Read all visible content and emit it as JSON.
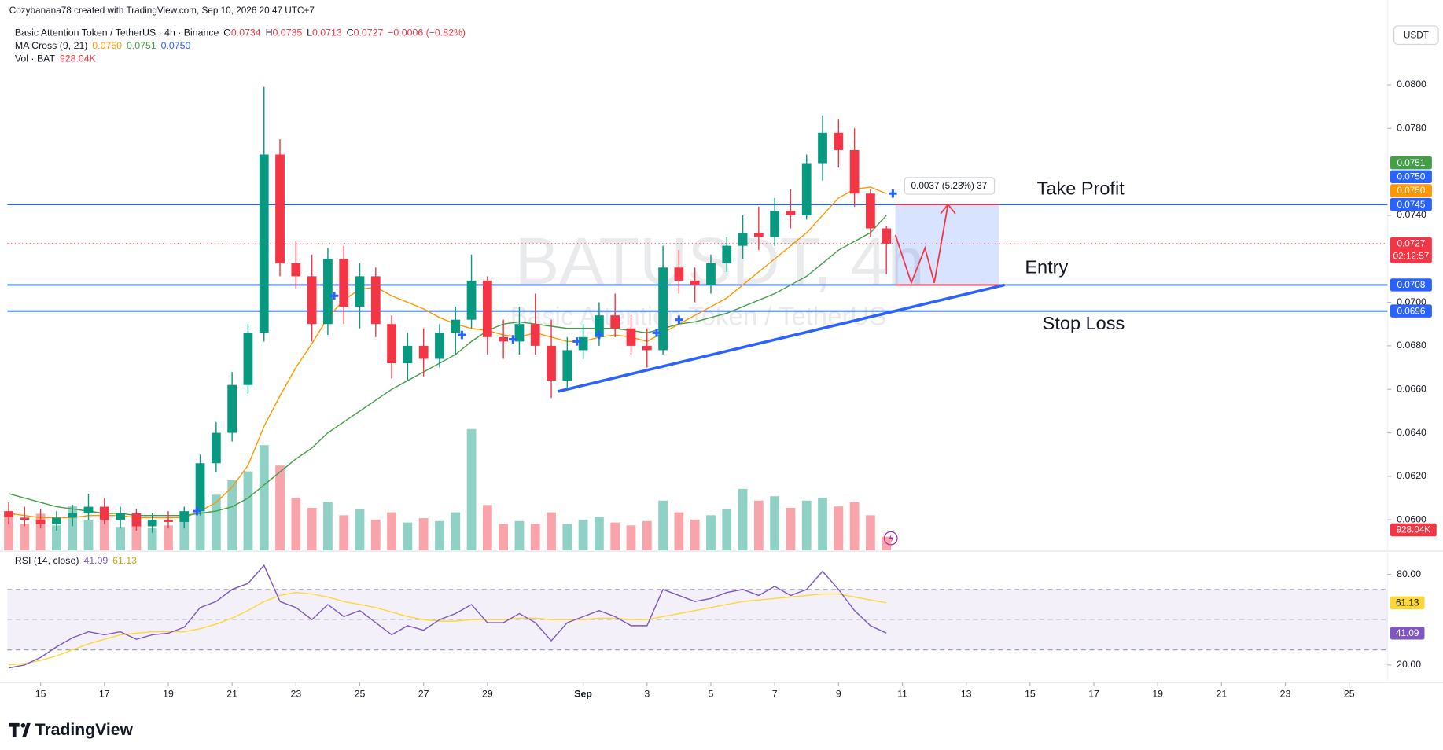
{
  "header": {
    "credit": "Cozybanana78 created with TradingView.com, Sep 10, 2026 20:47 UTC+7",
    "symbol": "Basic Attention Token / TetherUS · 4h · Binance",
    "ohlc": [
      {
        "key": "O",
        "value": "0.0734"
      },
      {
        "key": "H",
        "value": "0.0735"
      },
      {
        "key": "L",
        "value": "0.0713"
      },
      {
        "key": "C",
        "value": "0.0727"
      }
    ],
    "change": "−0.0006 (−0.82%)",
    "ma_legend": {
      "name": "MA Cross (9, 21)",
      "values": [
        "0.0750",
        "0.0751",
        "0.0750"
      ]
    },
    "vol_legend": {
      "name": "Vol · BAT",
      "value": "928.04K"
    },
    "rsi_legend": {
      "name": "RSI (14, close)",
      "values": [
        "41.09",
        "61.13"
      ]
    },
    "currency": "USDT",
    "watermark": "BATUSDT, 4h",
    "watermark_sub": "Basic Attention Token / TetherUS",
    "brand": "TradingView"
  },
  "chart_data": {
    "type": "candlestick",
    "x": [
      14,
      14.5,
      15,
      15.5,
      16,
      16.5,
      17,
      17.5,
      18,
      18.5,
      19,
      19.5,
      20,
      20.5,
      21,
      21.5,
      22,
      22.5,
      23,
      23.5,
      24,
      24.5,
      25,
      25.5,
      26,
      26.5,
      27,
      27.5,
      28,
      28.5,
      29,
      29.5,
      30,
      30.5,
      31,
      31.5,
      32,
      32.5,
      33,
      33.5,
      34,
      34.5,
      35,
      35.5,
      36,
      36.5,
      37,
      37.5,
      38,
      38.5,
      39,
      39.5,
      40,
      40.5,
      41,
      41.5
    ],
    "open": [
      0.0604,
      0.0601,
      0.06,
      0.0598,
      0.0601,
      0.0603,
      0.0606,
      0.06,
      0.0603,
      0.0597,
      0.06,
      0.0599,
      0.0604,
      0.0626,
      0.064,
      0.0662,
      0.0686,
      0.0768,
      0.0718,
      0.0712,
      0.069,
      0.072,
      0.0698,
      0.0712,
      0.069,
      0.0672,
      0.068,
      0.0674,
      0.0686,
      0.0692,
      0.071,
      0.0684,
      0.0682,
      0.069,
      0.068,
      0.0664,
      0.0678,
      0.0684,
      0.0694,
      0.0688,
      0.068,
      0.0678,
      0.0716,
      0.071,
      0.0708,
      0.0718,
      0.0726,
      0.0732,
      0.073,
      0.0742,
      0.074,
      0.0764,
      0.0778,
      0.077,
      0.075,
      0.0734
    ],
    "high": [
      0.0608,
      0.0606,
      0.0605,
      0.0604,
      0.0607,
      0.0612,
      0.061,
      0.0606,
      0.0605,
      0.0603,
      0.0604,
      0.0606,
      0.063,
      0.0645,
      0.0668,
      0.069,
      0.0799,
      0.0775,
      0.0728,
      0.0722,
      0.0725,
      0.0726,
      0.0718,
      0.0716,
      0.0694,
      0.0686,
      0.0688,
      0.069,
      0.0698,
      0.0722,
      0.0712,
      0.0692,
      0.0698,
      0.0704,
      0.0692,
      0.0684,
      0.069,
      0.07,
      0.0704,
      0.0694,
      0.0688,
      0.0726,
      0.0724,
      0.0716,
      0.0722,
      0.073,
      0.074,
      0.0744,
      0.0748,
      0.0752,
      0.0768,
      0.0786,
      0.0784,
      0.078,
      0.0752,
      0.0735
    ],
    "low": [
      0.0598,
      0.0597,
      0.0596,
      0.0595,
      0.0597,
      0.06,
      0.0598,
      0.0596,
      0.0595,
      0.0594,
      0.0596,
      0.0596,
      0.0602,
      0.0622,
      0.0636,
      0.0658,
      0.0682,
      0.0712,
      0.0706,
      0.0682,
      0.0685,
      0.069,
      0.0688,
      0.0684,
      0.0665,
      0.0664,
      0.0666,
      0.067,
      0.0676,
      0.0688,
      0.0676,
      0.0674,
      0.0676,
      0.0676,
      0.0656,
      0.066,
      0.0674,
      0.068,
      0.0684,
      0.0676,
      0.067,
      0.0676,
      0.0704,
      0.07,
      0.0704,
      0.0714,
      0.072,
      0.0724,
      0.0726,
      0.0734,
      0.0738,
      0.0756,
      0.0762,
      0.0744,
      0.073,
      0.0713
    ],
    "close": [
      0.0601,
      0.06,
      0.0598,
      0.0601,
      0.0603,
      0.0606,
      0.06,
      0.0603,
      0.0597,
      0.06,
      0.0599,
      0.0604,
      0.0626,
      0.064,
      0.0662,
      0.0686,
      0.0768,
      0.0718,
      0.0712,
      0.069,
      0.072,
      0.0698,
      0.0712,
      0.069,
      0.0672,
      0.068,
      0.0674,
      0.0686,
      0.0692,
      0.071,
      0.0684,
      0.0682,
      0.069,
      0.068,
      0.0664,
      0.0678,
      0.0684,
      0.0694,
      0.0688,
      0.068,
      0.0678,
      0.0716,
      0.071,
      0.0708,
      0.0718,
      0.0726,
      0.0732,
      0.073,
      0.0742,
      0.074,
      0.0764,
      0.0778,
      0.077,
      0.075,
      0.0734,
      0.0727
    ],
    "up_color": "#089981",
    "down_color": "#f23645",
    "xlim": [
      13.96,
      57.2
    ],
    "xticks": [
      15,
      17,
      19,
      21,
      23,
      25,
      27,
      29,
      {
        "value": 32,
        "label": "Sep"
      },
      {
        "value": 34,
        "label": "3"
      },
      {
        "value": 36,
        "label": "5"
      },
      {
        "value": 38,
        "label": "7"
      },
      {
        "value": 40,
        "label": "9"
      },
      {
        "value": 42,
        "label": "11"
      },
      {
        "value": 44,
        "label": "13"
      },
      {
        "value": 46,
        "label": "15"
      },
      {
        "value": 48,
        "label": "17"
      },
      {
        "value": 50,
        "label": "19"
      },
      {
        "value": 52,
        "label": "21"
      },
      {
        "value": 54,
        "label": "23"
      },
      {
        "value": 56,
        "label": "25"
      }
    ],
    "ylim": [
      0.0586,
      0.0805
    ],
    "yticks": [
      {
        "value": 0.08,
        "label": "0.0800"
      },
      {
        "value": 0.078,
        "label": "0.0780"
      },
      {
        "value": 0.074,
        "label": "0.0740"
      },
      {
        "value": 0.07,
        "label": "0.0700"
      },
      {
        "value": 0.068,
        "label": "0.0680"
      },
      {
        "value": 0.066,
        "label": "0.0660"
      },
      {
        "value": 0.064,
        "label": "0.0640"
      },
      {
        "value": 0.062,
        "label": "0.0620"
      },
      {
        "value": 0.06,
        "label": "0.0600"
      }
    ],
    "ma": [
      {
        "color": "#ff9800",
        "values": [
          0.0603,
          0.0602,
          0.0601,
          0.0601,
          0.0601,
          0.0602,
          0.0602,
          0.0602,
          0.0601,
          0.0601,
          0.0601,
          0.0601,
          0.0604,
          0.0608,
          0.0615,
          0.0625,
          0.0643,
          0.0657,
          0.067,
          0.0681,
          0.0693,
          0.0701,
          0.0706,
          0.0707,
          0.0703,
          0.07,
          0.0697,
          0.0693,
          0.069,
          0.0688,
          0.0687,
          0.0685,
          0.0684,
          0.0686,
          0.0684,
          0.0682,
          0.0682,
          0.0684,
          0.0685,
          0.0684,
          0.0682,
          0.0686,
          0.069,
          0.0694,
          0.0698,
          0.0702,
          0.0708,
          0.0714,
          0.072,
          0.0726,
          0.0732,
          0.074,
          0.0748,
          0.0752,
          0.0753,
          0.075
        ]
      },
      {
        "color": "#43a047",
        "values": [
          0.0612,
          0.061,
          0.0608,
          0.0606,
          0.0605,
          0.0604,
          0.0603,
          0.0603,
          0.0602,
          0.0602,
          0.0602,
          0.0602,
          0.0603,
          0.0604,
          0.0606,
          0.061,
          0.0616,
          0.0622,
          0.0628,
          0.0633,
          0.064,
          0.0645,
          0.065,
          0.0655,
          0.066,
          0.0664,
          0.0668,
          0.0672,
          0.0676,
          0.0682,
          0.0687,
          0.069,
          0.0691,
          0.069,
          0.0689,
          0.0688,
          0.0688,
          0.0688,
          0.0688,
          0.0687,
          0.0686,
          0.0688,
          0.069,
          0.0691,
          0.0693,
          0.0695,
          0.0698,
          0.0701,
          0.0704,
          0.0708,
          0.0712,
          0.0718,
          0.0724,
          0.0728,
          0.0732,
          0.074
        ]
      }
    ],
    "crosses": {
      "color": "#2962ff",
      "x": [
        19.9,
        24.2,
        28.2,
        29.8,
        31.8,
        32.5,
        34.3,
        35.0,
        41.7
      ],
      "values": [
        0.0604,
        0.0703,
        0.0685,
        0.0683,
        0.0682,
        0.0685,
        0.0686,
        0.0692,
        0.075
      ]
    },
    "volume": {
      "vlim": [
        0,
        9500
      ],
      "values": [
        2200,
        1800,
        2500,
        1700,
        3000,
        2100,
        2600,
        1600,
        1900,
        1500,
        1700,
        2200,
        3400,
        3800,
        4800,
        5400,
        7200,
        5800,
        3600,
        2900,
        3300,
        2400,
        2800,
        2100,
        2600,
        1900,
        2200,
        2000,
        2600,
        8300,
        3100,
        1800,
        2000,
        1800,
        2600,
        1800,
        2100,
        2300,
        1900,
        1700,
        2000,
        3400,
        2600,
        2100,
        2400,
        2800,
        4200,
        3400,
        3700,
        2900,
        3400,
        3600,
        3000,
        3300,
        2400,
        928.04
      ],
      "last_value_label": "928.04K"
    },
    "levels": [
      {
        "value": 0.0745,
        "color": "#2962ff"
      },
      {
        "value": 0.0708,
        "color": "#2962ff"
      },
      {
        "value": 0.0696,
        "color": "#2962ff"
      }
    ],
    "price_tags": [
      {
        "value": 0.0751,
        "label": "0.0751",
        "color": "#43a047"
      },
      {
        "value": 0.075,
        "label": "0.0750",
        "color": "#2962ff"
      },
      {
        "value": 0.075,
        "label": "0.0750",
        "color": "#ff9800"
      },
      {
        "value": 0.0745,
        "label": "0.0745",
        "color": "#2962ff"
      },
      {
        "value": 0.0727,
        "label": "0.0727",
        "sub": "02:12:57",
        "color": "#f23645"
      },
      {
        "value": 0.0708,
        "label": "0.0708",
        "color": "#2962ff"
      },
      {
        "value": 0.0696,
        "label": "0.0696",
        "color": "#2962ff"
      }
    ],
    "trendline": {
      "color": "#2962ff",
      "x": [
        31.2,
        45.2
      ],
      "values": [
        0.0659,
        0.0708
      ]
    },
    "position": {
      "x": [
        41.78,
        45.03
      ],
      "top": 0.0745,
      "bottom": 0.0708
    },
    "projection": {
      "color": "#f23645",
      "x": [
        41.78,
        42.28,
        42.71,
        43.0,
        43.43
      ],
      "values": [
        0.0731,
        0.0709,
        0.0725,
        0.0709,
        0.0745
      ]
    },
    "annotations": {
      "take_profit": "Take Profit",
      "entry": "Entry",
      "stop_loss": "Stop Loss",
      "measure": "0.0037 (5.23%) 37"
    },
    "rsi": {
      "color": "#7e57c2",
      "ma_color": "#fdd835",
      "ylim": [
        13.3,
        92.9
      ],
      "yticks": [
        {
          "value": 80,
          "label": "80.00"
        },
        {
          "value": 20,
          "label": "20.00"
        }
      ],
      "bands": [
        70,
        50,
        30
      ],
      "values": [
        18,
        20,
        25,
        32,
        38,
        42,
        40,
        42,
        37,
        40,
        41,
        45,
        58,
        62,
        70,
        74,
        86,
        62,
        58,
        50,
        60,
        52,
        56,
        48,
        40,
        46,
        43,
        50,
        54,
        60,
        48,
        48,
        54,
        48,
        36,
        48,
        52,
        56,
        52,
        46,
        46,
        70,
        66,
        62,
        64,
        68,
        70,
        66,
        72,
        66,
        70,
        82,
        70,
        56,
        46,
        41.09
      ],
      "ma": [
        20,
        21,
        23,
        26,
        30,
        34,
        37,
        40,
        41,
        42,
        42,
        42,
        44,
        47,
        51,
        56,
        62,
        66,
        68,
        67,
        65,
        62,
        60,
        58,
        55,
        52,
        50,
        49,
        49,
        50,
        50,
        50,
        51,
        51,
        50,
        50,
        50,
        51,
        51,
        50,
        50,
        52,
        54,
        56,
        58,
        60,
        62,
        63,
        64,
        65,
        66,
        67,
        67,
        65,
        63,
        61.13
      ]
    }
  }
}
